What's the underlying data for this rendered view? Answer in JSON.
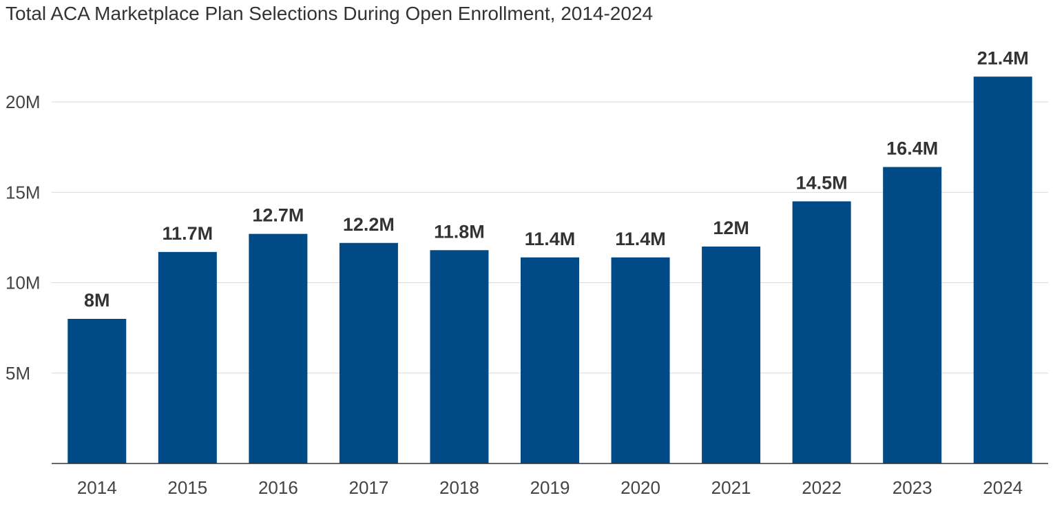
{
  "chart_data": {
    "type": "bar",
    "title": "Total ACA Marketplace Plan Selections During Open Enrollment, 2014-2024",
    "xlabel": "",
    "ylabel": "",
    "categories": [
      "2014",
      "2015",
      "2016",
      "2017",
      "2018",
      "2019",
      "2020",
      "2021",
      "2022",
      "2023",
      "2024"
    ],
    "values": [
      8.0,
      11.7,
      12.7,
      12.2,
      11.8,
      11.4,
      11.4,
      12.0,
      14.5,
      16.4,
      21.4
    ],
    "data_labels": [
      "8M",
      "11.7M",
      "12.7M",
      "12.2M",
      "11.8M",
      "11.4M",
      "11.4M",
      "12M",
      "14.5M",
      "16.4M",
      "21.4M"
    ],
    "value_unit": "millions",
    "yticks": [
      5,
      10,
      15,
      20
    ],
    "ytick_labels": [
      "5M",
      "10M",
      "15M",
      "20M"
    ],
    "ylim": [
      0,
      24
    ],
    "grid": true,
    "legend": "none",
    "colors": {
      "bar": "#004B87",
      "grid": "#d9d9d9",
      "text": "#333333"
    }
  }
}
